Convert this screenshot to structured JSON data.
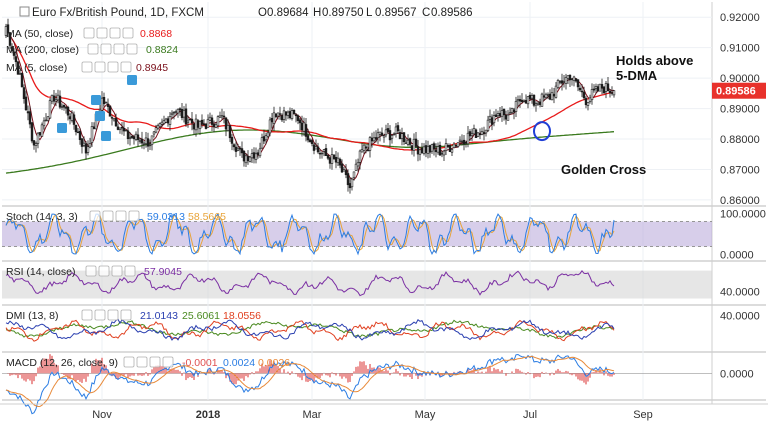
{
  "header": {
    "symbol_title": "Euro Fx/British Pound, 1D, FXCM",
    "ohlc": [
      {
        "label": "O",
        "value": "0.89684"
      },
      {
        "label": "H",
        "value": "0.89750"
      },
      {
        "label": "L",
        "value": "0.89567"
      },
      {
        "label": "C",
        "value": "0.89586"
      }
    ]
  },
  "colors": {
    "up": "#26a69a",
    "down": "#ef5350",
    "candle": "#1a1a1a",
    "sma50": "#e81a1a",
    "sma200": "#3a7a1e",
    "sma5": "#7a0f1a",
    "stoch_k": "#2b7de3",
    "stoch_d": "#e8a43a",
    "stoch_band": "#b6a6d8",
    "rsi": "#7b2fa3",
    "plus_di": "#2a3fb0",
    "minus_di": "#e04020",
    "adx": "#4a8a20",
    "macd_line": "#2b7de3",
    "signal": "#e88a3a",
    "hist": "#e05050",
    "price_label_bg": "#e8312b",
    "circle": "#1f3fd6"
  },
  "chart_data": [
    {
      "type": "candlestick",
      "title": "Euro Fx/British Pound, 1D, FXCM",
      "x_ticks": [
        "Nov",
        "2018",
        "Mar",
        "May",
        "Jul",
        "Sep"
      ],
      "ylim": [
        0.858,
        0.925
      ],
      "y_ticks": [
        "0.92000",
        "0.91000",
        "0.90000",
        "0.89000",
        "0.88000",
        "0.87000",
        "0.86000"
      ],
      "last_price": "0.89586",
      "start_price": 0.914,
      "seed": 7,
      "key_prices": [
        [
          0,
          0.917
        ],
        [
          6,
          0.903
        ],
        [
          14,
          0.878
        ],
        [
          24,
          0.894
        ],
        [
          32,
          0.888
        ],
        [
          40,
          0.876
        ],
        [
          48,
          0.893
        ],
        [
          60,
          0.881
        ],
        [
          72,
          0.879
        ],
        [
          84,
          0.89
        ],
        [
          96,
          0.884
        ],
        [
          108,
          0.887
        ],
        [
          118,
          0.874
        ],
        [
          126,
          0.876
        ],
        [
          134,
          0.889
        ],
        [
          146,
          0.887
        ],
        [
          156,
          0.876
        ],
        [
          166,
          0.872
        ],
        [
          172,
          0.864
        ],
        [
          178,
          0.876
        ],
        [
          186,
          0.881
        ],
        [
          196,
          0.882
        ],
        [
          206,
          0.877
        ],
        [
          218,
          0.876
        ],
        [
          228,
          0.88
        ],
        [
          238,
          0.883
        ],
        [
          246,
          0.889
        ],
        [
          252,
          0.887
        ],
        [
          258,
          0.894
        ],
        [
          264,
          0.892
        ],
        [
          272,
          0.894
        ],
        [
          278,
          0.899
        ],
        [
          282,
          0.901
        ],
        [
          290,
          0.893
        ],
        [
          298,
          0.897
        ],
        [
          304,
          0.8959
        ]
      ],
      "indicators": [
        {
          "name": "MA (50, close)",
          "value": "0.8868",
          "period": 50
        },
        {
          "name": "MA (200, close)",
          "value": "0.8824",
          "period": 200
        },
        {
          "name": "MA (5, close)",
          "value": "0.8945",
          "period": 5
        }
      ],
      "annotations": [
        "Holds above\n5-DMA",
        "Golden Cross"
      ],
      "golden_cross_bar": 268
    },
    {
      "type": "line",
      "title": "Stoch (14, 3, 3)",
      "values": [
        "59.0313",
        "58.5665"
      ],
      "ylim": [
        -8,
        108
      ],
      "band": [
        20,
        80
      ],
      "y_ticks": [
        "100.0000",
        "0.0000"
      ]
    },
    {
      "type": "line",
      "title": "RSI (14, close)",
      "values": [
        "57.9045"
      ],
      "ylim": [
        25,
        78
      ],
      "y_ticks": [
        "40.0000"
      ]
    },
    {
      "type": "line",
      "title": "DMI (13, 8)",
      "values": [
        "21.0143",
        "25.6061",
        "18.0556"
      ],
      "ylim": [
        0,
        48
      ],
      "y_ticks": [
        "40.0000"
      ]
    },
    {
      "type": "line",
      "title": "MACD (12, 26, close, 9)",
      "values": [
        "-0.0001",
        "0.0024",
        "0.0026"
      ],
      "ylim": [
        -0.0085,
        0.0062
      ],
      "y_ticks": [
        "0.0000"
      ]
    }
  ]
}
